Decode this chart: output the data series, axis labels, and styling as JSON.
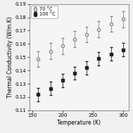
{
  "title": "",
  "xlabel": "Temperature (K)",
  "ylabel": "Thermal Conductivity (W/m.K)",
  "xlim": [
    145,
    310
  ],
  "ylim": [
    0.11,
    0.19
  ],
  "series_70": {
    "label": "70 °C",
    "x": [
      160,
      180,
      200,
      220,
      240,
      260,
      280,
      300
    ],
    "y": [
      0.1485,
      0.1545,
      0.1585,
      0.1635,
      0.167,
      0.171,
      0.175,
      0.1785
    ],
    "yerr": [
      0.006,
      0.006,
      0.006,
      0.006,
      0.006,
      0.006,
      0.006,
      0.006
    ],
    "marker": "o",
    "markerfacecolor": "white",
    "markeredgecolor": "#888888",
    "ecolor": "#888888",
    "markersize": 3.0
  },
  "series_100": {
    "label": "100 °C",
    "x": [
      160,
      180,
      200,
      220,
      240,
      260,
      280,
      300
    ],
    "y": [
      0.122,
      0.1265,
      0.1325,
      0.138,
      0.142,
      0.149,
      0.1525,
      0.1555
    ],
    "yerr": [
      0.005,
      0.005,
      0.005,
      0.005,
      0.005,
      0.005,
      0.005,
      0.005
    ],
    "marker": "s",
    "markerfacecolor": "#222222",
    "markeredgecolor": "#222222",
    "ecolor": "#222222",
    "markersize": 3.0
  },
  "xticks": [
    150,
    200,
    250,
    300
  ],
  "yticks": [
    0.11,
    0.12,
    0.13,
    0.14,
    0.15,
    0.16,
    0.17,
    0.18,
    0.19
  ],
  "legend_loc": "upper left",
  "background_color": "#f5f5f5",
  "tick_fontsize": 5.0,
  "label_fontsize": 5.5,
  "legend_fontsize": 4.8
}
